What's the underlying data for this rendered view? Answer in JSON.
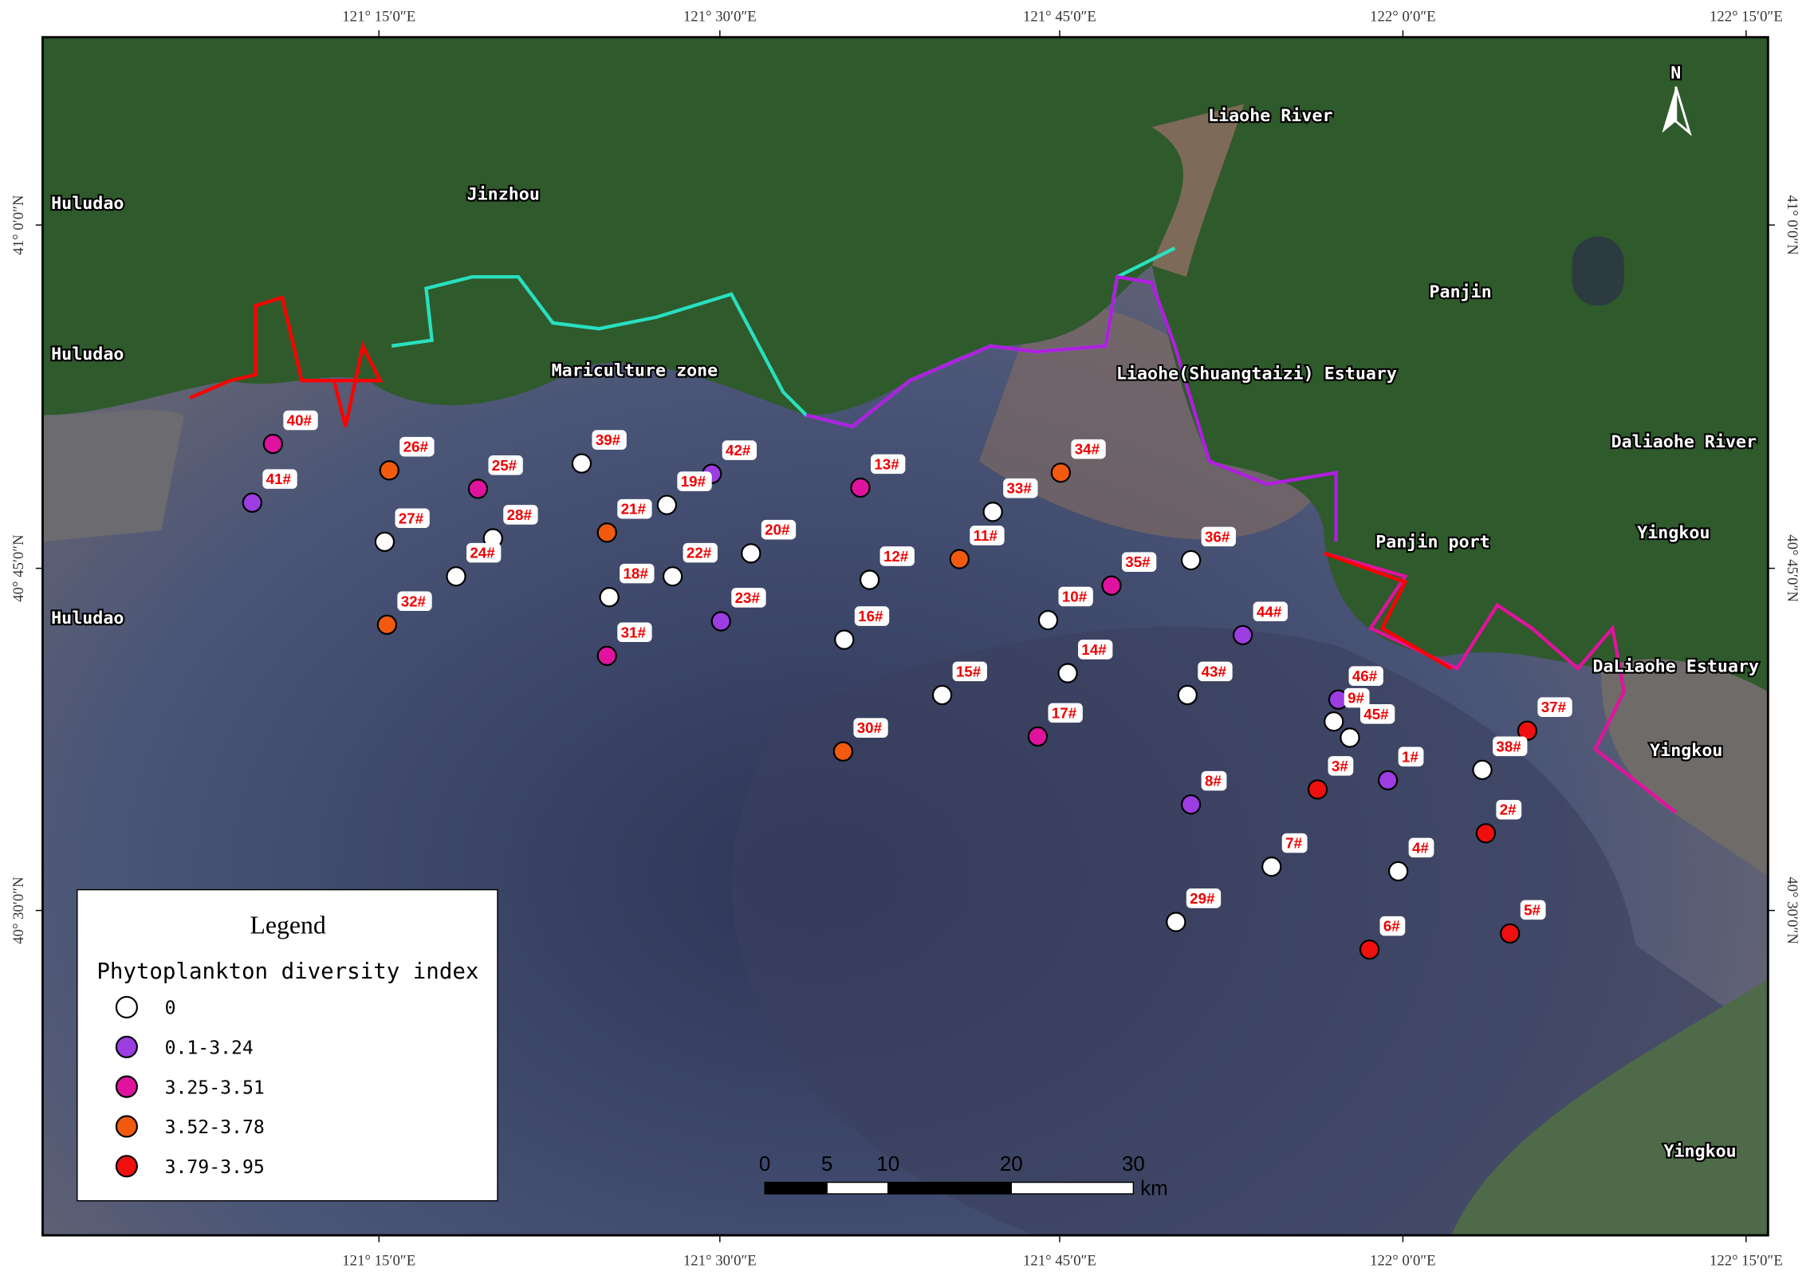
{
  "graticule": {
    "longitudes": [
      "121° 15′0″E",
      "121° 30′0″E",
      "121° 45′0″E",
      "122° 0′0″E",
      "122° 15′0″E"
    ],
    "latitudes": [
      "41° 0′0″N",
      "40° 45′0″N",
      "40° 30′0″N"
    ]
  },
  "places": [
    "Huludao",
    "Huludao",
    "Huludao",
    "Jinzhou",
    "Liaohe River",
    "Panjin",
    "Mariculture zone",
    "Liaohe(Shuangtaizi) Estuary",
    "Daliaohe River",
    "Yingkou",
    "Panjin port",
    "DaLiaohe Estuary",
    "Yingkou",
    "Yingkou"
  ],
  "north": "N",
  "scale_bar": {
    "labels": [
      "0",
      "5",
      "10",
      "20",
      "30"
    ],
    "unit": "km"
  },
  "legend": {
    "title": "Legend",
    "subtitle": "Phytoplankton diversity index",
    "items": [
      {
        "label": "0",
        "color": "#ffffff"
      },
      {
        "label": "0.1-3.24",
        "color": "#9b3de0"
      },
      {
        "label": "3.25-3.51",
        "color": "#e0139e"
      },
      {
        "label": "3.52-3.78",
        "color": "#f25a0f"
      },
      {
        "label": "3.79-3.95",
        "color": "#f00f0f"
      }
    ]
  },
  "stations": [
    {
      "label": "40#",
      "class": "3.25-3.51"
    },
    {
      "label": "41#",
      "class": "0.1-3.24"
    },
    {
      "label": "26#",
      "class": "3.52-3.78"
    },
    {
      "label": "25#",
      "class": "3.25-3.51"
    },
    {
      "label": "39#",
      "class": "0"
    },
    {
      "label": "42#",
      "class": "0.1-3.24"
    },
    {
      "label": "19#",
      "class": "0"
    },
    {
      "label": "13#",
      "class": "3.25-3.51"
    },
    {
      "label": "34#",
      "class": "3.52-3.78"
    },
    {
      "label": "33#",
      "class": "0"
    },
    {
      "label": "27#",
      "class": "0"
    },
    {
      "label": "28#",
      "class": "0"
    },
    {
      "label": "21#",
      "class": "3.52-3.78"
    },
    {
      "label": "20#",
      "class": "0"
    },
    {
      "label": "11#",
      "class": "3.52-3.78"
    },
    {
      "label": "12#",
      "class": "0"
    },
    {
      "label": "36#",
      "class": "0"
    },
    {
      "label": "24#",
      "class": "0"
    },
    {
      "label": "22#",
      "class": "0"
    },
    {
      "label": "18#",
      "class": "0"
    },
    {
      "label": "35#",
      "class": "3.25-3.51"
    },
    {
      "label": "10#",
      "class": "0"
    },
    {
      "label": "32#",
      "class": "3.52-3.78"
    },
    {
      "label": "23#",
      "class": "0.1-3.24"
    },
    {
      "label": "16#",
      "class": "0"
    },
    {
      "label": "44#",
      "class": "0.1-3.24"
    },
    {
      "label": "31#",
      "class": "3.25-3.51"
    },
    {
      "label": "14#",
      "class": "0"
    },
    {
      "label": "15#",
      "class": "0"
    },
    {
      "label": "43#",
      "class": "0"
    },
    {
      "label": "46#",
      "class": "0.1-3.24"
    },
    {
      "label": "9#",
      "class": "0"
    },
    {
      "label": "45#",
      "class": "0"
    },
    {
      "label": "30#",
      "class": "3.52-3.78"
    },
    {
      "label": "17#",
      "class": "3.25-3.51"
    },
    {
      "label": "37#",
      "class": "3.79-3.95"
    },
    {
      "label": "38#",
      "class": "0"
    },
    {
      "label": "3#",
      "class": "3.79-3.95"
    },
    {
      "label": "1#",
      "class": "0.1-3.24"
    },
    {
      "label": "8#",
      "class": "0.1-3.24"
    },
    {
      "label": "2#",
      "class": "3.79-3.95"
    },
    {
      "label": "7#",
      "class": "0"
    },
    {
      "label": "4#",
      "class": "0"
    },
    {
      "label": "29#",
      "class": "0"
    },
    {
      "label": "6#",
      "class": "3.79-3.95"
    },
    {
      "label": "5#",
      "class": "3.79-3.95"
    }
  ]
}
